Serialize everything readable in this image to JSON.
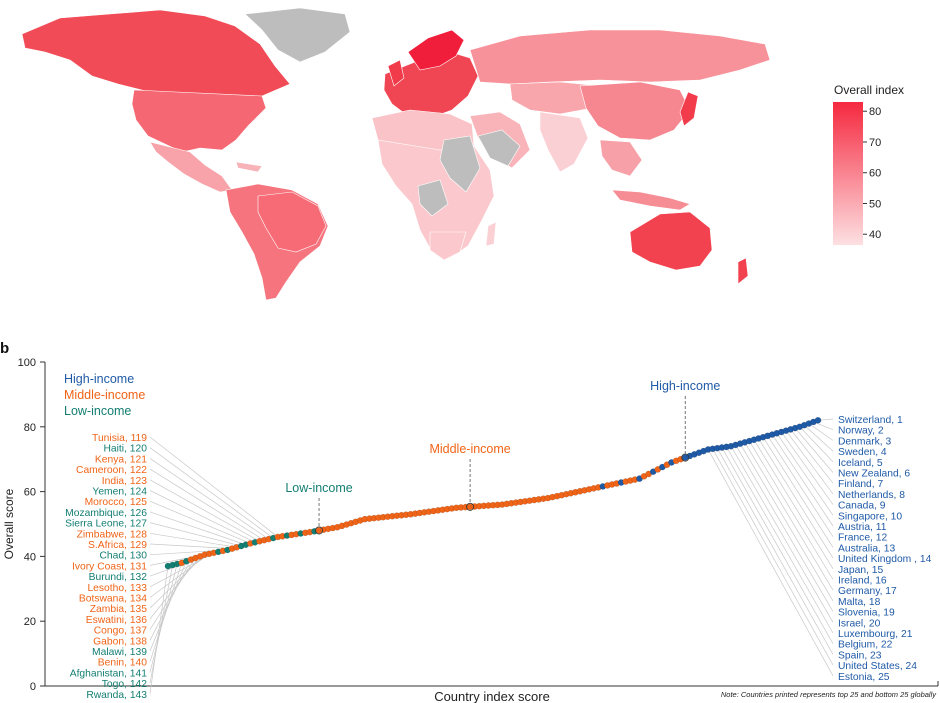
{
  "map": {
    "legend_title": "Overall index",
    "legend_ticks": [
      "80",
      "70",
      "60",
      "50",
      "40"
    ],
    "legend_values": [
      80,
      70,
      60,
      50,
      40
    ],
    "color_low": "#fde0e2",
    "color_high": "#f5293f",
    "no_data_color": "#bdbdbd"
  },
  "panel_label": "b",
  "colors": {
    "high": "#1f5aa6",
    "middle": "#f06418",
    "low": "#137e72"
  },
  "chart_data": {
    "type": "scatter",
    "xlabel": "Country index score",
    "ylabel": "Overall score",
    "ylim": [
      0,
      100
    ],
    "yticks": [
      "0",
      "20",
      "40",
      "60",
      "80",
      "100"
    ],
    "ytick_values": [
      0,
      20,
      40,
      60,
      80,
      100
    ],
    "n_countries": 143,
    "legend": [
      {
        "label": "High-income",
        "group": "high"
      },
      {
        "label": "Middle-income",
        "group": "middle"
      },
      {
        "label": "Low-income",
        "group": "low"
      }
    ],
    "group_annotations": [
      {
        "label": "Low-income",
        "group": "low",
        "rank": 110
      },
      {
        "label": "Middle-income",
        "group": "middle",
        "rank": 77
      },
      {
        "label": "High-income",
        "group": "high",
        "rank": 30
      }
    ],
    "score_profile": [
      {
        "rank": 1,
        "score": 82
      },
      {
        "rank": 5,
        "score": 80
      },
      {
        "rank": 10,
        "score": 78
      },
      {
        "rank": 15,
        "score": 76
      },
      {
        "rank": 20,
        "score": 74
      },
      {
        "rank": 25,
        "score": 73
      },
      {
        "rank": 29,
        "score": 71
      },
      {
        "rank": 33,
        "score": 69
      },
      {
        "rank": 40,
        "score": 64
      },
      {
        "rank": 50,
        "score": 61
      },
      {
        "rank": 60,
        "score": 58
      },
      {
        "rank": 70,
        "score": 56
      },
      {
        "rank": 80,
        "score": 55
      },
      {
        "rank": 90,
        "score": 53
      },
      {
        "rank": 100,
        "score": 51.5
      },
      {
        "rank": 106,
        "score": 49
      },
      {
        "rank": 112,
        "score": 47.5
      },
      {
        "rank": 119,
        "score": 46
      },
      {
        "rank": 125,
        "score": 44
      },
      {
        "rank": 130,
        "score": 42
      },
      {
        "rank": 135,
        "score": 40.5
      },
      {
        "rank": 140,
        "score": 38
      },
      {
        "rank": 143,
        "score": 37
      }
    ],
    "top25": [
      {
        "label": "Switzerland, 1",
        "rank": 1,
        "group": "high"
      },
      {
        "label": "Norway, 2",
        "rank": 2,
        "group": "high"
      },
      {
        "label": "Denmark, 3",
        "rank": 3,
        "group": "high"
      },
      {
        "label": "Sweden, 4",
        "rank": 4,
        "group": "high"
      },
      {
        "label": "Iceland, 5",
        "rank": 5,
        "group": "high"
      },
      {
        "label": "New Zealand, 6",
        "rank": 6,
        "group": "high"
      },
      {
        "label": "Finland, 7",
        "rank": 7,
        "group": "high"
      },
      {
        "label": "Netherlands, 8",
        "rank": 8,
        "group": "high"
      },
      {
        "label": "Canada, 9",
        "rank": 9,
        "group": "high"
      },
      {
        "label": "Singapore, 10",
        "rank": 10,
        "group": "high"
      },
      {
        "label": "Austria, 11",
        "rank": 11,
        "group": "high"
      },
      {
        "label": "France, 12",
        "rank": 12,
        "group": "high"
      },
      {
        "label": "Australia, 13",
        "rank": 13,
        "group": "high"
      },
      {
        "label": "United Kingdom , 14",
        "rank": 14,
        "group": "high"
      },
      {
        "label": "Japan, 15",
        "rank": 15,
        "group": "high"
      },
      {
        "label": "Ireland, 16",
        "rank": 16,
        "group": "high"
      },
      {
        "label": "Germany, 17",
        "rank": 17,
        "group": "high"
      },
      {
        "label": "Malta, 18",
        "rank": 18,
        "group": "high"
      },
      {
        "label": "Slovenia, 19",
        "rank": 19,
        "group": "high"
      },
      {
        "label": "Israel, 20",
        "rank": 20,
        "group": "high"
      },
      {
        "label": "Luxembourg, 21",
        "rank": 21,
        "group": "high"
      },
      {
        "label": "Belgium, 22",
        "rank": 22,
        "group": "high"
      },
      {
        "label": "Spain, 23",
        "rank": 23,
        "group": "high"
      },
      {
        "label": "United States, 24",
        "rank": 24,
        "group": "high"
      },
      {
        "label": "Estonia, 25",
        "rank": 25,
        "group": "high"
      }
    ],
    "bottom25": [
      {
        "label": "Tunisia, 119",
        "rank": 119,
        "group": "middle"
      },
      {
        "label": "Haiti, 120",
        "rank": 120,
        "group": "low"
      },
      {
        "label": "Kenya, 121",
        "rank": 121,
        "group": "middle"
      },
      {
        "label": "Cameroon, 122",
        "rank": 122,
        "group": "middle"
      },
      {
        "label": "India, 123",
        "rank": 123,
        "group": "middle"
      },
      {
        "label": "Yemen, 124",
        "rank": 124,
        "group": "low"
      },
      {
        "label": "Morocco, 125",
        "rank": 125,
        "group": "middle"
      },
      {
        "label": "Mozambique, 126",
        "rank": 126,
        "group": "low"
      },
      {
        "label": "Sierra Leone, 127",
        "rank": 127,
        "group": "low"
      },
      {
        "label": "Zimbabwe, 128",
        "rank": 128,
        "group": "middle"
      },
      {
        "label": "S.Africa, 129",
        "rank": 129,
        "group": "middle"
      },
      {
        "label": "Chad, 130",
        "rank": 130,
        "group": "low"
      },
      {
        "label": "Ivory Coast, 131",
        "rank": 131,
        "group": "middle"
      },
      {
        "label": "Burundi, 132",
        "rank": 132,
        "group": "low"
      },
      {
        "label": "Lesotho, 133",
        "rank": 133,
        "group": "middle"
      },
      {
        "label": "Botswana, 134",
        "rank": 134,
        "group": "middle"
      },
      {
        "label": "Zambia, 135",
        "rank": 135,
        "group": "middle"
      },
      {
        "label": "Eswatini, 136",
        "rank": 136,
        "group": "middle"
      },
      {
        "label": "Congo, 137",
        "rank": 137,
        "group": "middle"
      },
      {
        "label": "Gabon, 138",
        "rank": 138,
        "group": "middle"
      },
      {
        "label": "Malawi, 139",
        "rank": 139,
        "group": "low"
      },
      {
        "label": "Benin, 140",
        "rank": 140,
        "group": "middle"
      },
      {
        "label": "Afghanistan, 141",
        "rank": 141,
        "group": "low"
      },
      {
        "label": "Togo, 142",
        "rank": 142,
        "group": "low"
      },
      {
        "label": "Rwanda, 143",
        "rank": 143,
        "group": "low"
      }
    ],
    "note": "Note: Countries printed represents top 25 and bottom 25 globally"
  }
}
